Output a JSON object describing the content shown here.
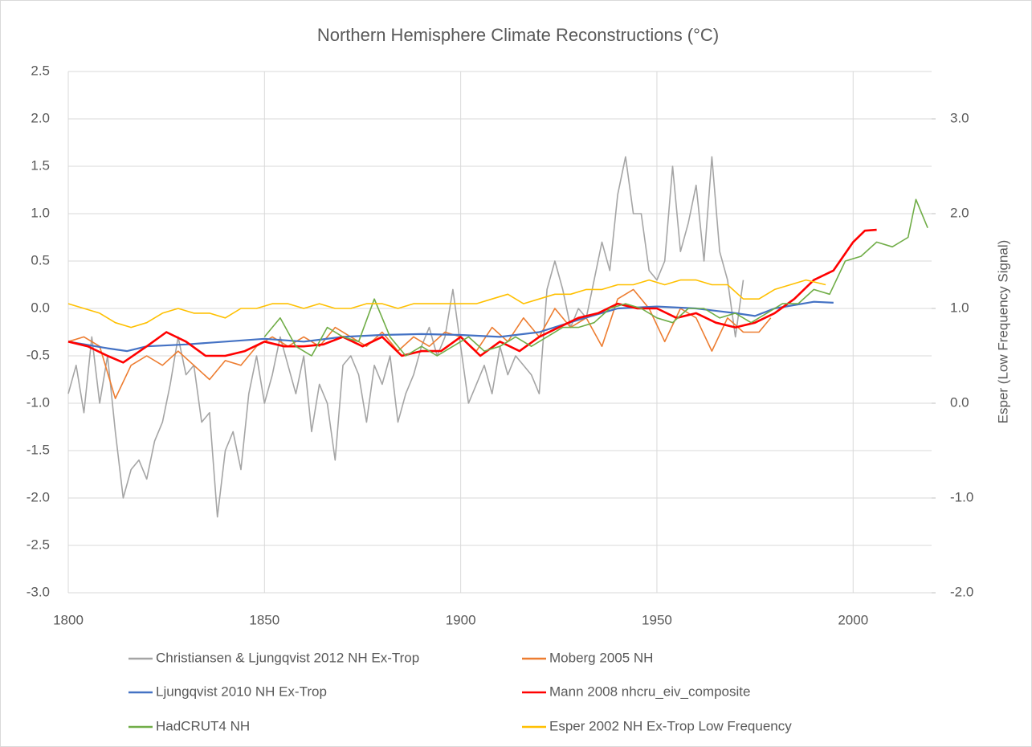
{
  "chart_data": {
    "type": "line",
    "title": "Northern Hemisphere Climate Reconstructions (°C)",
    "y2_label": "Esper (Low Frequency Signal)",
    "xlim": [
      1800,
      2020
    ],
    "xticks": [
      1800,
      1850,
      1900,
      1950,
      2000
    ],
    "ylim": [
      -3,
      2.5
    ],
    "yticks": [
      {
        "value": -3,
        "label": "-3.0"
      },
      {
        "value": -2.5,
        "label": "-2.5"
      },
      {
        "value": -2,
        "label": "-2.0"
      },
      {
        "value": -1.5,
        "label": "-1.5"
      },
      {
        "value": -1,
        "label": "-1.0"
      },
      {
        "value": -0.5,
        "label": "-0.5"
      },
      {
        "value": 0,
        "label": "0.0"
      },
      {
        "value": 0.5,
        "label": "0.5"
      },
      {
        "value": 1,
        "label": "1.0"
      },
      {
        "value": 1.5,
        "label": "1.5"
      },
      {
        "value": 2,
        "label": "2.0"
      },
      {
        "value": 2.5,
        "label": "2.5"
      }
    ],
    "y2lim": [
      -2,
      3.5
    ],
    "y2ticks": [
      {
        "value": -2,
        "label": "-2.0"
      },
      {
        "value": -1,
        "label": "-1.0"
      },
      {
        "value": 0,
        "label": "0.0"
      },
      {
        "value": 1,
        "label": "1.0"
      },
      {
        "value": 2,
        "label": "2.0"
      },
      {
        "value": 3,
        "label": "3.0"
      }
    ],
    "grid": true,
    "series": [
      {
        "name": "Christiansen & Ljungqvist 2012 NH Ex-Trop",
        "color": "#a5a5a5",
        "x": [
          1800,
          1802,
          1804,
          1806,
          1808,
          1810,
          1812,
          1814,
          1816,
          1818,
          1820,
          1822,
          1824,
          1826,
          1828,
          1830,
          1832,
          1834,
          1836,
          1838,
          1840,
          1842,
          1844,
          1846,
          1848,
          1850,
          1852,
          1854,
          1856,
          1858,
          1860,
          1862,
          1864,
          1866,
          1868,
          1870,
          1872,
          1874,
          1876,
          1878,
          1880,
          1882,
          1884,
          1886,
          1888,
          1890,
          1892,
          1894,
          1896,
          1898,
          1900,
          1902,
          1904,
          1906,
          1908,
          1910,
          1912,
          1914,
          1916,
          1918,
          1920,
          1922,
          1924,
          1926,
          1928,
          1930,
          1932,
          1934,
          1936,
          1938,
          1940,
          1942,
          1944,
          1946,
          1948,
          1950,
          1952,
          1954,
          1956,
          1958,
          1960,
          1962,
          1964,
          1966,
          1968,
          1970,
          1972
        ],
        "values": [
          -0.9,
          -0.6,
          -1.1,
          -0.3,
          -1.0,
          -0.5,
          -1.3,
          -2.0,
          -1.7,
          -1.6,
          -1.8,
          -1.4,
          -1.2,
          -0.8,
          -0.3,
          -0.7,
          -0.6,
          -1.2,
          -1.1,
          -2.2,
          -1.5,
          -1.3,
          -1.7,
          -0.9,
          -0.5,
          -1.0,
          -0.7,
          -0.3,
          -0.6,
          -0.9,
          -0.5,
          -1.3,
          -0.8,
          -1.0,
          -1.6,
          -0.6,
          -0.5,
          -0.7,
          -1.2,
          -0.6,
          -0.8,
          -0.5,
          -1.2,
          -0.9,
          -0.7,
          -0.4,
          -0.2,
          -0.5,
          -0.3,
          0.2,
          -0.4,
          -1.0,
          -0.8,
          -0.6,
          -0.9,
          -0.4,
          -0.7,
          -0.5,
          -0.6,
          -0.7,
          -0.9,
          0.2,
          0.5,
          0.2,
          -0.2,
          0.0,
          -0.1,
          0.3,
          0.7,
          0.4,
          1.2,
          1.6,
          1.0,
          1.0,
          0.4,
          0.3,
          0.5,
          1.5,
          0.6,
          0.9,
          1.3,
          0.5,
          1.6,
          0.6,
          0.3,
          -0.3,
          0.3
        ]
      },
      {
        "name": "Moberg 2005 NH",
        "color": "#ed7d31",
        "x": [
          1800,
          1804,
          1808,
          1812,
          1816,
          1820,
          1824,
          1828,
          1832,
          1836,
          1840,
          1844,
          1848,
          1852,
          1856,
          1860,
          1864,
          1868,
          1872,
          1876,
          1880,
          1884,
          1888,
          1892,
          1896,
          1900,
          1904,
          1908,
          1912,
          1916,
          1920,
          1924,
          1928,
          1932,
          1936,
          1940,
          1944,
          1948,
          1952,
          1956,
          1960,
          1964,
          1968,
          1972,
          1976,
          1979
        ],
        "values": [
          -0.35,
          -0.3,
          -0.4,
          -0.95,
          -0.6,
          -0.5,
          -0.6,
          -0.45,
          -0.6,
          -0.75,
          -0.55,
          -0.6,
          -0.4,
          -0.3,
          -0.4,
          -0.3,
          -0.4,
          -0.2,
          -0.3,
          -0.4,
          -0.25,
          -0.45,
          -0.3,
          -0.4,
          -0.25,
          -0.3,
          -0.45,
          -0.2,
          -0.35,
          -0.1,
          -0.3,
          0.0,
          -0.2,
          -0.1,
          -0.4,
          0.1,
          0.2,
          0.0,
          -0.35,
          0.0,
          -0.1,
          -0.45,
          -0.1,
          -0.25,
          -0.25,
          -0.1
        ]
      },
      {
        "name": "Ljungqvist 2010 NH Ex-Trop",
        "color": "#4472c4",
        "x": [
          1800,
          1810,
          1815,
          1820,
          1830,
          1840,
          1850,
          1860,
          1870,
          1880,
          1890,
          1900,
          1910,
          1920,
          1930,
          1940,
          1950,
          1960,
          1970,
          1975,
          1980,
          1990,
          1995
        ],
        "values": [
          -0.35,
          -0.42,
          -0.45,
          -0.4,
          -0.38,
          -0.35,
          -0.32,
          -0.35,
          -0.3,
          -0.28,
          -0.27,
          -0.28,
          -0.3,
          -0.25,
          -0.12,
          0.0,
          0.02,
          0.0,
          -0.05,
          -0.08,
          0.0,
          0.07,
          0.06
        ]
      },
      {
        "name": "Mann 2008 nhcru_eiv_composite",
        "color": "#ff0000",
        "x": [
          1800,
          1805,
          1810,
          1814,
          1820,
          1825,
          1830,
          1835,
          1840,
          1845,
          1850,
          1855,
          1860,
          1865,
          1870,
          1875,
          1880,
          1885,
          1890,
          1895,
          1900,
          1905,
          1910,
          1915,
          1920,
          1925,
          1930,
          1935,
          1940,
          1945,
          1950,
          1955,
          1960,
          1965,
          1970,
          1975,
          1980,
          1985,
          1990,
          1995,
          2000,
          2003,
          2006
        ],
        "values": [
          -0.35,
          -0.4,
          -0.5,
          -0.57,
          -0.4,
          -0.25,
          -0.35,
          -0.5,
          -0.5,
          -0.45,
          -0.35,
          -0.4,
          -0.4,
          -0.38,
          -0.3,
          -0.4,
          -0.3,
          -0.5,
          -0.45,
          -0.45,
          -0.3,
          -0.5,
          -0.35,
          -0.45,
          -0.3,
          -0.2,
          -0.1,
          -0.05,
          0.05,
          0.0,
          0.0,
          -0.1,
          -0.05,
          -0.15,
          -0.2,
          -0.15,
          -0.05,
          0.1,
          0.3,
          0.4,
          0.7,
          0.82,
          0.83
        ]
      },
      {
        "name": "HadCRUT4 NH",
        "color": "#70ad47",
        "x": [
          1850,
          1854,
          1858,
          1862,
          1866,
          1870,
          1874,
          1878,
          1882,
          1886,
          1890,
          1894,
          1898,
          1902,
          1906,
          1910,
          1914,
          1918,
          1922,
          1926,
          1930,
          1934,
          1938,
          1942,
          1946,
          1950,
          1954,
          1958,
          1962,
          1966,
          1970,
          1974,
          1978,
          1982,
          1986,
          1990,
          1994,
          1998,
          2002,
          2006,
          2010,
          2014,
          2016,
          2019
        ],
        "values": [
          -0.3,
          -0.1,
          -0.4,
          -0.5,
          -0.2,
          -0.3,
          -0.35,
          0.1,
          -0.3,
          -0.5,
          -0.4,
          -0.5,
          -0.4,
          -0.3,
          -0.45,
          -0.4,
          -0.3,
          -0.4,
          -0.3,
          -0.2,
          -0.2,
          -0.15,
          0.0,
          0.05,
          0.0,
          -0.1,
          -0.15,
          0.0,
          0.0,
          -0.1,
          -0.05,
          -0.15,
          -0.05,
          0.05,
          0.05,
          0.2,
          0.15,
          0.5,
          0.55,
          0.7,
          0.65,
          0.75,
          1.15,
          0.85
        ]
      },
      {
        "name": "Esper 2002 NH Ex-Trop Low Frequency",
        "color": "#ffc000",
        "axis": "y2",
        "x": [
          1800,
          1804,
          1808,
          1812,
          1816,
          1820,
          1824,
          1828,
          1832,
          1836,
          1840,
          1844,
          1848,
          1852,
          1856,
          1860,
          1864,
          1868,
          1872,
          1876,
          1880,
          1884,
          1888,
          1892,
          1896,
          1900,
          1904,
          1908,
          1912,
          1916,
          1920,
          1924,
          1928,
          1932,
          1936,
          1940,
          1944,
          1948,
          1952,
          1956,
          1960,
          1964,
          1968,
          1972,
          1976,
          1980,
          1984,
          1988,
          1993
        ],
        "values": [
          1.05,
          1.0,
          0.95,
          0.85,
          0.8,
          0.85,
          0.95,
          1.0,
          0.95,
          0.95,
          0.9,
          1.0,
          1.0,
          1.05,
          1.05,
          1.0,
          1.05,
          1.0,
          1.0,
          1.05,
          1.05,
          1.0,
          1.05,
          1.05,
          1.05,
          1.05,
          1.05,
          1.1,
          1.15,
          1.05,
          1.1,
          1.15,
          1.15,
          1.2,
          1.2,
          1.25,
          1.25,
          1.3,
          1.25,
          1.3,
          1.3,
          1.25,
          1.25,
          1.1,
          1.1,
          1.2,
          1.25,
          1.3,
          1.25
        ]
      }
    ]
  }
}
